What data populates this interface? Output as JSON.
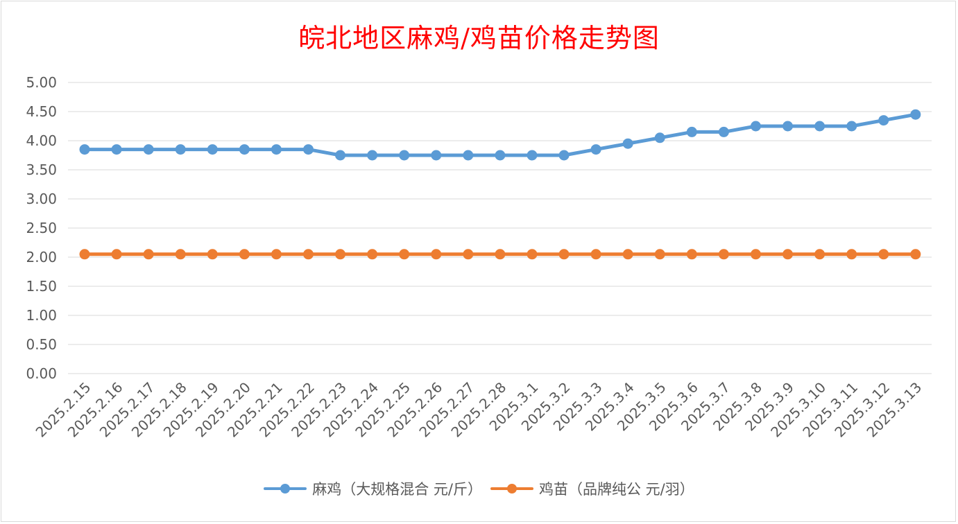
{
  "chart_data": {
    "type": "line",
    "title": "皖北地区麻鸡/鸡苗价格走势图",
    "xlabel": "",
    "ylabel": "",
    "ylim": [
      0,
      5
    ],
    "yticks": [
      "0.00",
      "0.50",
      "1.00",
      "1.50",
      "2.00",
      "2.50",
      "3.00",
      "3.50",
      "4.00",
      "4.50",
      "5.00"
    ],
    "grid": true,
    "legend": "bottom",
    "categories": [
      "2025.2.15",
      "2025.2.16",
      "2025.2.17",
      "2025.2.18",
      "2025.2.19",
      "2025.2.20",
      "2025.2.21",
      "2025.2.22",
      "2025.2.23",
      "2025.2.24",
      "2025.2.25",
      "2025.2.26",
      "2025.2.27",
      "2025.2.28",
      "2025.3.1",
      "2025.3.2",
      "2025.3.3",
      "2025.3.4",
      "2025.3.5",
      "2025.3.6",
      "2025.3.7",
      "2025.3.8",
      "2025.3.9",
      "2025.3.10",
      "2025.3.11",
      "2025.3.12",
      "2025.3.13"
    ],
    "series": [
      {
        "name": "麻鸡（大规格混合 元/斤）",
        "color": "#5b9bd5",
        "values": [
          3.85,
          3.85,
          3.85,
          3.85,
          3.85,
          3.85,
          3.85,
          3.85,
          3.75,
          3.75,
          3.75,
          3.75,
          3.75,
          3.75,
          3.75,
          3.75,
          3.85,
          3.95,
          4.05,
          4.15,
          4.15,
          4.25,
          4.25,
          4.25,
          4.25,
          4.35,
          4.45
        ]
      },
      {
        "name": "鸡苗（品牌纯公 元/羽）",
        "color": "#ed7d31",
        "values": [
          2.05,
          2.05,
          2.05,
          2.05,
          2.05,
          2.05,
          2.05,
          2.05,
          2.05,
          2.05,
          2.05,
          2.05,
          2.05,
          2.05,
          2.05,
          2.05,
          2.05,
          2.05,
          2.05,
          2.05,
          2.05,
          2.05,
          2.05,
          2.05,
          2.05,
          2.05,
          2.05
        ]
      }
    ]
  }
}
